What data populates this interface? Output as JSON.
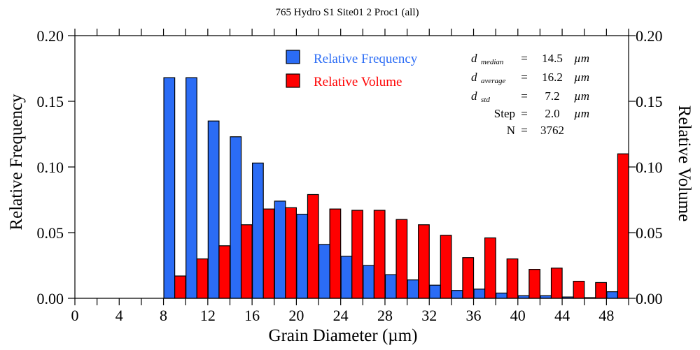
{
  "chart_data": {
    "type": "bar",
    "title": "765 Hydro S1 Site01 2 Proc1 (all)",
    "xlabel": "Grain Diameter (µm)",
    "ylabel": "Relative Frequency",
    "y2label": "Relative Volume",
    "xlim": [
      0,
      50
    ],
    "ylim": [
      0,
      0.2
    ],
    "y2lim": [
      0,
      0.2
    ],
    "grid": false,
    "legend_position": "top-center",
    "x_ticks": [
      "0",
      "4",
      "8",
      "12",
      "16",
      "20",
      "24",
      "28",
      "32",
      "36",
      "40",
      "44",
      "48"
    ],
    "x_tick_values": [
      0,
      4,
      8,
      12,
      16,
      20,
      24,
      28,
      32,
      36,
      40,
      44,
      48
    ],
    "y_ticks": [
      "0.00",
      "0.05",
      "0.10",
      "0.15",
      "0.20"
    ],
    "y_tick_values": [
      0,
      0.05,
      0.1,
      0.15,
      0.2
    ],
    "y2_ticks": [
      "0.00",
      "0.05",
      "0.10",
      "0.15",
      "0.20"
    ],
    "y2_tick_values": [
      0,
      0.05,
      0.1,
      0.15,
      0.2
    ],
    "bin_width": 2.0,
    "bin_starts": [
      8,
      10,
      12,
      14,
      16,
      18,
      20,
      22,
      24,
      26,
      28,
      30,
      32,
      34,
      36,
      38,
      40,
      42,
      44,
      46,
      48
    ],
    "series": [
      {
        "name": "Relative Frequency",
        "axis": "left",
        "color": "#2b6cf5",
        "values": [
          0.168,
          0.168,
          0.135,
          0.123,
          0.103,
          0.074,
          0.064,
          0.041,
          0.032,
          0.025,
          0.018,
          0.014,
          0.01,
          0.006,
          0.007,
          0.004,
          0.002,
          0.002,
          0.001,
          0.0005,
          0.005
        ]
      },
      {
        "name": "Relative Volume",
        "axis": "right",
        "color": "#ff0000",
        "values": [
          0.017,
          0.03,
          0.04,
          0.056,
          0.068,
          0.069,
          0.079,
          0.068,
          0.067,
          0.067,
          0.06,
          0.056,
          0.048,
          0.031,
          0.046,
          0.03,
          0.022,
          0.023,
          0.013,
          0.012,
          0.11
        ]
      }
    ],
    "statistics": [
      {
        "symbol": "d",
        "subscript": "median",
        "eq": "=",
        "value": "14.5",
        "unit": "µm"
      },
      {
        "symbol": "d",
        "subscript": "average",
        "eq": "=",
        "value": "16.2",
        "unit": "µm"
      },
      {
        "symbol": "d",
        "subscript": "std",
        "eq": "=",
        "value": "7.2",
        "unit": "µm"
      },
      {
        "symbol": "Step",
        "subscript": "",
        "eq": "=",
        "value": "2.0",
        "unit": "µm"
      },
      {
        "symbol": "N",
        "subscript": "",
        "eq": "=",
        "value": "3762",
        "unit": ""
      }
    ]
  }
}
